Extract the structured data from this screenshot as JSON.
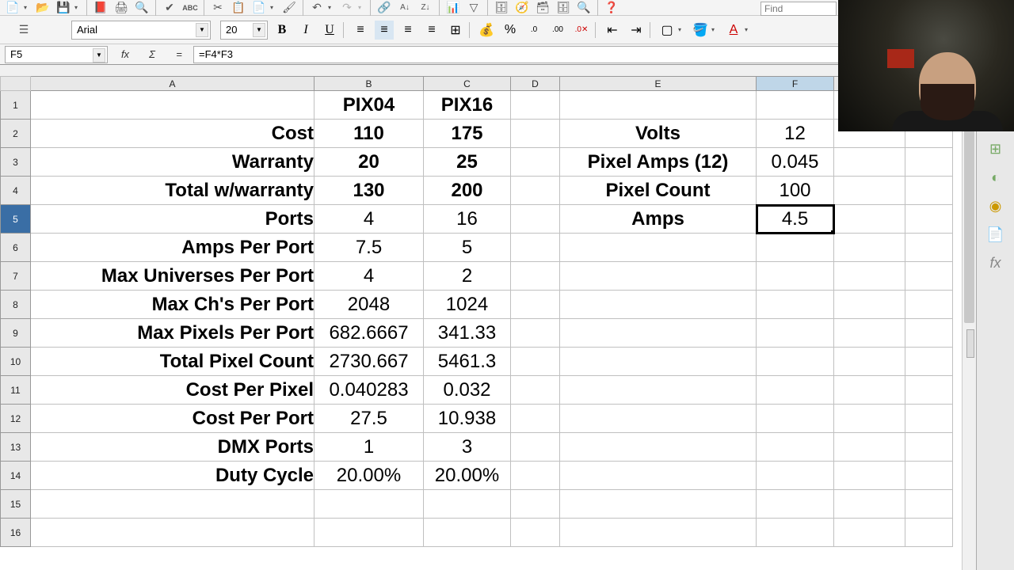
{
  "ui": {
    "find_placeholder": "Find",
    "font_name": "Arial",
    "font_size": "20",
    "cell_ref": "F5",
    "formula": "=F4*F3"
  },
  "colwidths": {
    "rowhead": 38,
    "A": 358,
    "B": 138,
    "C": 110,
    "D": 62,
    "E": 248,
    "F": 98,
    "G": 90,
    "H": 60
  },
  "columns": [
    "A",
    "B",
    "C",
    "D",
    "E",
    "F",
    "G",
    "H"
  ],
  "active_col": "F",
  "active_row": 5,
  "rows": [
    {
      "n": 1,
      "A": "",
      "B": "PIX04",
      "C": "PIX16",
      "E": "",
      "F": ""
    },
    {
      "n": 2,
      "A": "Cost",
      "B": "110",
      "C": "175",
      "E": "Volts",
      "F": "12"
    },
    {
      "n": 3,
      "A": "Warranty",
      "B": "20",
      "C": "25",
      "E": "Pixel Amps (12)",
      "F": "0.045"
    },
    {
      "n": 4,
      "A": "Total w/warranty",
      "B": "130",
      "C": "200",
      "E": "Pixel Count",
      "F": "100"
    },
    {
      "n": 5,
      "A": "Ports",
      "B": "4",
      "C": "16",
      "E": "Amps",
      "F": "4.5"
    },
    {
      "n": 6,
      "A": "Amps Per Port",
      "B": "7.5",
      "C": "5",
      "E": "",
      "F": ""
    },
    {
      "n": 7,
      "A": "Max Universes Per Port",
      "B": "4",
      "C": "2",
      "E": "",
      "F": ""
    },
    {
      "n": 8,
      "A": "Max Ch's Per Port",
      "B": "2048",
      "C": "1024",
      "E": "",
      "F": ""
    },
    {
      "n": 9,
      "A": "Max Pixels Per Port",
      "B": "682.6667",
      "C": "341.33",
      "E": "",
      "F": ""
    },
    {
      "n": 10,
      "A": "Total Pixel Count",
      "B": "2730.667",
      "C": "5461.3",
      "E": "",
      "F": ""
    },
    {
      "n": 11,
      "A": "Cost Per Pixel",
      "B": "0.040283",
      "C": "0.032",
      "E": "",
      "F": ""
    },
    {
      "n": 12,
      "A": "Cost Per Port",
      "B": "27.5",
      "C": "10.938",
      "E": "",
      "F": ""
    },
    {
      "n": 13,
      "A": "DMX Ports",
      "B": "1",
      "C": "3",
      "E": "",
      "F": ""
    },
    {
      "n": 14,
      "A": "Duty Cycle",
      "B": "20.00%",
      "C": "20.00%",
      "E": "",
      "F": ""
    },
    {
      "n": 15,
      "A": "",
      "B": "",
      "C": "",
      "E": "",
      "F": ""
    },
    {
      "n": 16,
      "A": "",
      "B": "",
      "C": "",
      "E": "",
      "F": ""
    }
  ],
  "bold_cells": {
    "A": [
      2,
      3,
      4,
      5,
      6,
      7,
      8,
      9,
      10,
      11,
      12,
      13,
      14
    ],
    "B": [
      1,
      2,
      3,
      4
    ],
    "C": [
      1,
      2,
      3,
      4
    ],
    "E": [
      2,
      3,
      4,
      5
    ]
  }
}
